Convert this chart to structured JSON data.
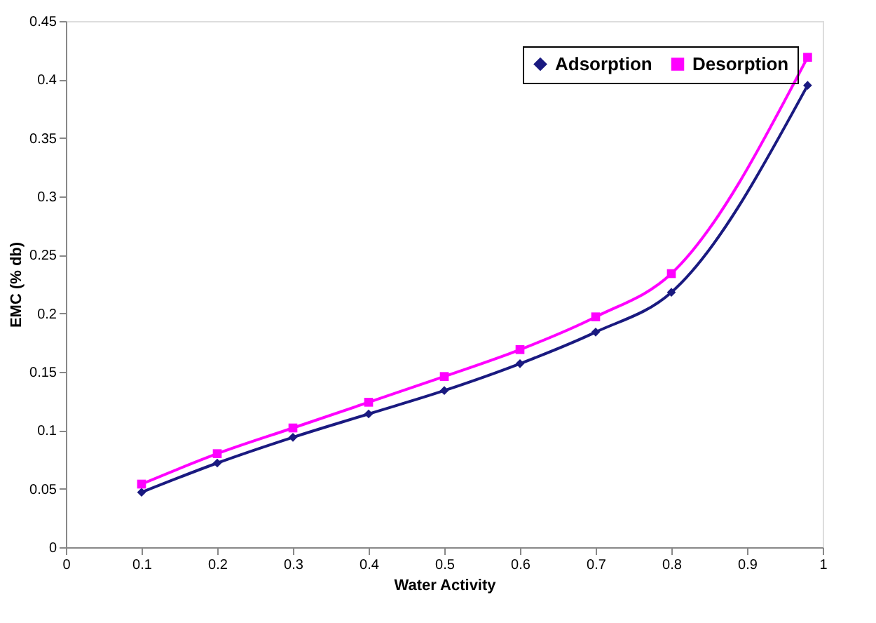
{
  "chart_data": {
    "type": "line",
    "xlabel": "Water Activity",
    "ylabel": "EMC (% db)",
    "xlim": [
      0,
      1
    ],
    "xticks": [
      0,
      0.1,
      0.2,
      0.3,
      0.4,
      0.5,
      0.6,
      0.7,
      0.8,
      0.9,
      1
    ],
    "ylim": [
      0,
      0.45
    ],
    "yticks": [
      0,
      0.05,
      0.1,
      0.15,
      0.2,
      0.25,
      0.3,
      0.35,
      0.4,
      0.45
    ],
    "x": [
      0.1,
      0.2,
      0.3,
      0.4,
      0.5,
      0.6,
      0.7,
      0.8,
      0.98
    ],
    "series": [
      {
        "name": "Adsorption",
        "color": "#1a1a80",
        "marker": "diamond",
        "values": [
          0.047,
          0.072,
          0.094,
          0.114,
          0.134,
          0.157,
          0.184,
          0.218,
          0.395
        ]
      },
      {
        "name": "Desorption",
        "color": "#ff00ff",
        "marker": "square",
        "values": [
          0.054,
          0.08,
          0.102,
          0.124,
          0.146,
          0.169,
          0.197,
          0.234,
          0.419
        ]
      }
    ],
    "grid": false,
    "legend": "top right",
    "line_style": "solid"
  }
}
